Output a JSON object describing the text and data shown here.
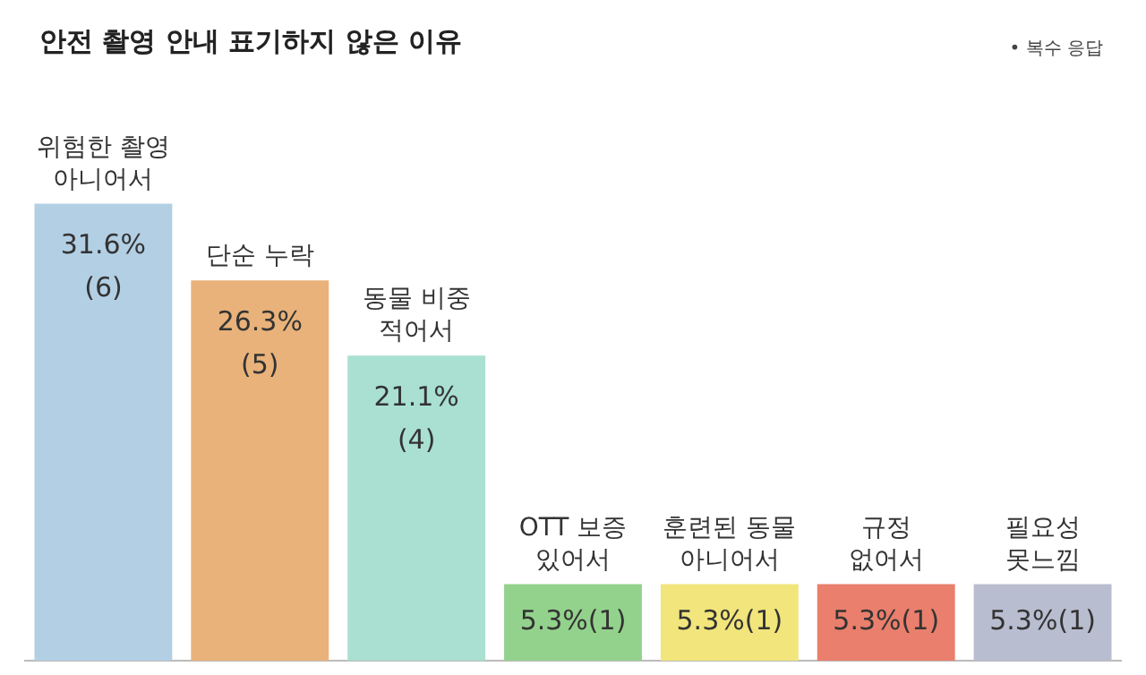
{
  "chart_data": {
    "type": "bar",
    "title": "안전 촬영 안내 표기하지 않은 이유",
    "annotations": [
      "• 복수 응답"
    ],
    "categories": [
      "위험한 촬영\n아니어서",
      "단순 누락",
      "동물 비중\n적어서",
      "OTT 보증\n있어서",
      "훈련된 동물\n아니어서",
      "규정\n없어서",
      "필요성\n못느낌"
    ],
    "values": [
      31.6,
      26.3,
      21.1,
      5.3,
      5.3,
      5.3,
      5.3
    ],
    "value_labels": [
      "31.6%\n(6)",
      "26.3%\n(5)",
      "21.1%\n(4)",
      "5.3%(1)",
      "5.3%(1)",
      "5.3%(1)",
      "5.3%(1)"
    ],
    "colors": [
      "#b3cfe4",
      "#e9b27a",
      "#a9e0d1",
      "#93d28c",
      "#f1e57c",
      "#e97f6c",
      "#b9bdd0"
    ],
    "grid": false,
    "legend": false
  }
}
